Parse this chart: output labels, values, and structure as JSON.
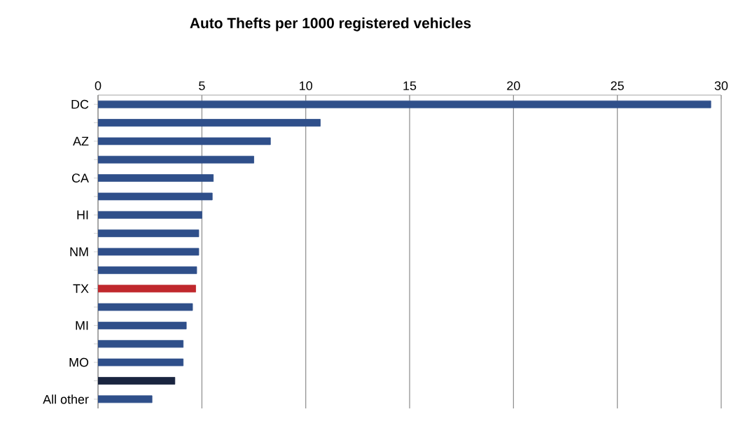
{
  "chart_data": {
    "type": "bar",
    "orientation": "horizontal",
    "title": "Auto Thefts per 1000 registered vehicles",
    "categories": [
      "DC",
      null,
      "AZ",
      null,
      "CA",
      null,
      "HI",
      null,
      "NM",
      null,
      "TX",
      null,
      "MI",
      null,
      "MO",
      null,
      "All other"
    ],
    "values": [
      29.5,
      10.7,
      8.3,
      7.5,
      5.55,
      5.5,
      5.0,
      4.85,
      4.85,
      4.75,
      4.7,
      4.55,
      4.25,
      4.1,
      4.1,
      3.7,
      2.6
    ],
    "colors": [
      "#2f4f8a",
      "#2f4f8a",
      "#2f4f8a",
      "#2f4f8a",
      "#2f4f8a",
      "#2f4f8a",
      "#2f4f8a",
      "#2f4f8a",
      "#2f4f8a",
      "#2f4f8a",
      "#c0282d",
      "#2f4f8a",
      "#2f4f8a",
      "#2f4f8a",
      "#2f4f8a",
      "#1a2540",
      "#2f4f8a"
    ],
    "xlim": [
      0,
      30
    ],
    "xticks": [
      0,
      5,
      10,
      15,
      20,
      25,
      30
    ],
    "grid": "x"
  }
}
